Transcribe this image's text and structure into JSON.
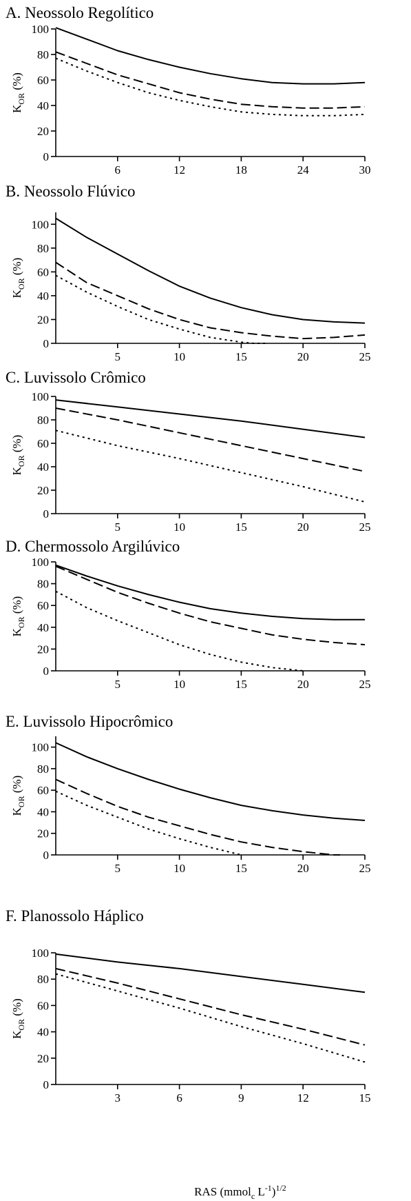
{
  "figure": {
    "x_axis_label": "RAS (mmol",
    "x_axis_label_sub": "c",
    "x_axis_label_mid": " L",
    "x_axis_label_sup": "-1",
    "x_axis_label_end": ")",
    "x_axis_label_exp": "1/2",
    "y_axis_label_main": "K",
    "y_axis_label_sub": "OR",
    "y_axis_label_unit": " (%)"
  },
  "chart_data": [
    {
      "type": "line",
      "title": "A. Neossolo Regolítico",
      "xlim": [
        0,
        30
      ],
      "ylim": [
        0,
        100
      ],
      "xticks": [
        6,
        12,
        18,
        24,
        30
      ],
      "yticks": [
        0,
        20,
        40,
        60,
        80,
        100
      ],
      "series": [
        {
          "style": "solid",
          "x": [
            0,
            3,
            6,
            9,
            12,
            15,
            18,
            21,
            24,
            27,
            30
          ],
          "y": [
            101,
            92,
            83,
            76,
            70,
            65,
            61,
            58,
            57,
            57,
            58
          ]
        },
        {
          "style": "dashed",
          "x": [
            0,
            3,
            6,
            9,
            12,
            15,
            18,
            21,
            24,
            27,
            30
          ],
          "y": [
            82,
            73,
            64,
            57,
            50,
            45,
            41,
            39,
            38,
            38,
            39
          ]
        },
        {
          "style": "dotted",
          "x": [
            0,
            3,
            6,
            9,
            12,
            15,
            18,
            21,
            24,
            27,
            30
          ],
          "y": [
            77,
            67,
            58,
            50,
            44,
            39,
            35,
            33,
            32,
            32,
            33
          ]
        }
      ]
    },
    {
      "type": "line",
      "title": "B. Neossolo Flúvico",
      "xlim": [
        0,
        25
      ],
      "ylim": [
        0,
        110
      ],
      "xticks": [
        5,
        10,
        15,
        20,
        25
      ],
      "yticks": [
        0,
        20,
        40,
        60,
        80,
        100
      ],
      "series": [
        {
          "style": "solid",
          "x": [
            0,
            2.5,
            5,
            7.5,
            10,
            12.5,
            15,
            17.5,
            20,
            22.5,
            25
          ],
          "y": [
            105,
            89,
            75,
            61,
            48,
            38,
            30,
            24,
            20,
            18,
            17
          ]
        },
        {
          "style": "dashed",
          "x": [
            0,
            2.5,
            5,
            7.5,
            10,
            12.5,
            15,
            17.5,
            20,
            22.5,
            25
          ],
          "y": [
            68,
            51,
            40,
            29,
            20,
            13,
            9,
            6,
            4,
            5,
            7
          ]
        },
        {
          "style": "dotted",
          "x": [
            0,
            2.5,
            5,
            7.5,
            10,
            12.5,
            15,
            16,
            17
          ],
          "y": [
            57,
            43,
            31,
            20,
            12,
            5,
            1,
            0,
            0
          ]
        }
      ]
    },
    {
      "type": "line",
      "title": "C. Luvissolo Crômico",
      "xlim": [
        0,
        25
      ],
      "ylim": [
        0,
        100
      ],
      "xticks": [
        5,
        10,
        15,
        20,
        25
      ],
      "yticks": [
        0,
        20,
        40,
        60,
        80,
        100
      ],
      "series": [
        {
          "style": "solid",
          "x": [
            0,
            5,
            10,
            15,
            20,
            25
          ],
          "y": [
            97,
            91,
            85,
            79,
            72,
            65
          ]
        },
        {
          "style": "dashed",
          "x": [
            0,
            5,
            10,
            15,
            20,
            25
          ],
          "y": [
            90,
            80,
            69,
            58,
            47,
            36
          ]
        },
        {
          "style": "dotted",
          "x": [
            0,
            5,
            10,
            15,
            20,
            25
          ],
          "y": [
            71,
            58,
            47,
            35,
            23,
            10
          ]
        }
      ]
    },
    {
      "type": "line",
      "title": "D. Chermossolo Argilúvico",
      "xlim": [
        0,
        25
      ],
      "ylim": [
        0,
        100
      ],
      "xticks": [
        5,
        10,
        15,
        20,
        25
      ],
      "yticks": [
        0,
        20,
        40,
        60,
        80,
        100
      ],
      "series": [
        {
          "style": "solid",
          "x": [
            0,
            2.5,
            5,
            7.5,
            10,
            12.5,
            15,
            17.5,
            20,
            22.5,
            25
          ],
          "y": [
            97,
            87,
            78,
            70,
            63,
            57,
            53,
            50,
            48,
            47,
            47
          ]
        },
        {
          "style": "dashed",
          "x": [
            0,
            2.5,
            5,
            7.5,
            10,
            12.5,
            15,
            17.5,
            20,
            22.5,
            25
          ],
          "y": [
            96,
            84,
            72,
            62,
            53,
            45,
            39,
            33,
            29,
            26,
            24
          ]
        },
        {
          "style": "dotted",
          "x": [
            0,
            2.5,
            5,
            7.5,
            10,
            12.5,
            15,
            17.5,
            20
          ],
          "y": [
            73,
            58,
            46,
            35,
            24,
            15,
            8,
            3,
            0
          ]
        }
      ]
    },
    {
      "type": "line",
      "title": "E. Luvissolo Hipocrômico",
      "xlim": [
        0,
        25
      ],
      "ylim": [
        0,
        110
      ],
      "xticks": [
        5,
        10,
        15,
        20,
        25
      ],
      "yticks": [
        0,
        20,
        40,
        60,
        80,
        100
      ],
      "series": [
        {
          "style": "solid",
          "x": [
            0,
            2.5,
            5,
            7.5,
            10,
            12.5,
            15,
            17.5,
            20,
            22.5,
            25
          ],
          "y": [
            104,
            91,
            80,
            70,
            61,
            53,
            46,
            41,
            37,
            34,
            32
          ]
        },
        {
          "style": "dashed",
          "x": [
            0,
            2.5,
            5,
            7.5,
            10,
            12.5,
            15,
            17.5,
            20,
            22.5,
            23
          ],
          "y": [
            70,
            57,
            45,
            35,
            27,
            19,
            12,
            7,
            3,
            0,
            0
          ]
        },
        {
          "style": "dotted",
          "x": [
            0,
            2.5,
            5,
            7.5,
            10,
            12.5,
            15
          ],
          "y": [
            59,
            46,
            35,
            24,
            15,
            7,
            0
          ]
        }
      ]
    },
    {
      "type": "line",
      "title": "F. Planossolo Háplico",
      "xlim": [
        0,
        15
      ],
      "ylim": [
        0,
        100
      ],
      "xticks": [
        3,
        6,
        9,
        12,
        15
      ],
      "yticks": [
        0,
        20,
        40,
        60,
        80,
        100
      ],
      "series": [
        {
          "style": "solid",
          "x": [
            0,
            3,
            6,
            9,
            12,
            15
          ],
          "y": [
            99,
            93,
            88,
            82,
            76,
            70
          ]
        },
        {
          "style": "dashed",
          "x": [
            0,
            3,
            6,
            9,
            12,
            15
          ],
          "y": [
            88,
            77,
            65,
            53,
            42,
            30
          ]
        },
        {
          "style": "dotted",
          "x": [
            0,
            3,
            6,
            9,
            12,
            15
          ],
          "y": [
            84,
            71,
            58,
            44,
            31,
            17
          ]
        }
      ]
    }
  ]
}
